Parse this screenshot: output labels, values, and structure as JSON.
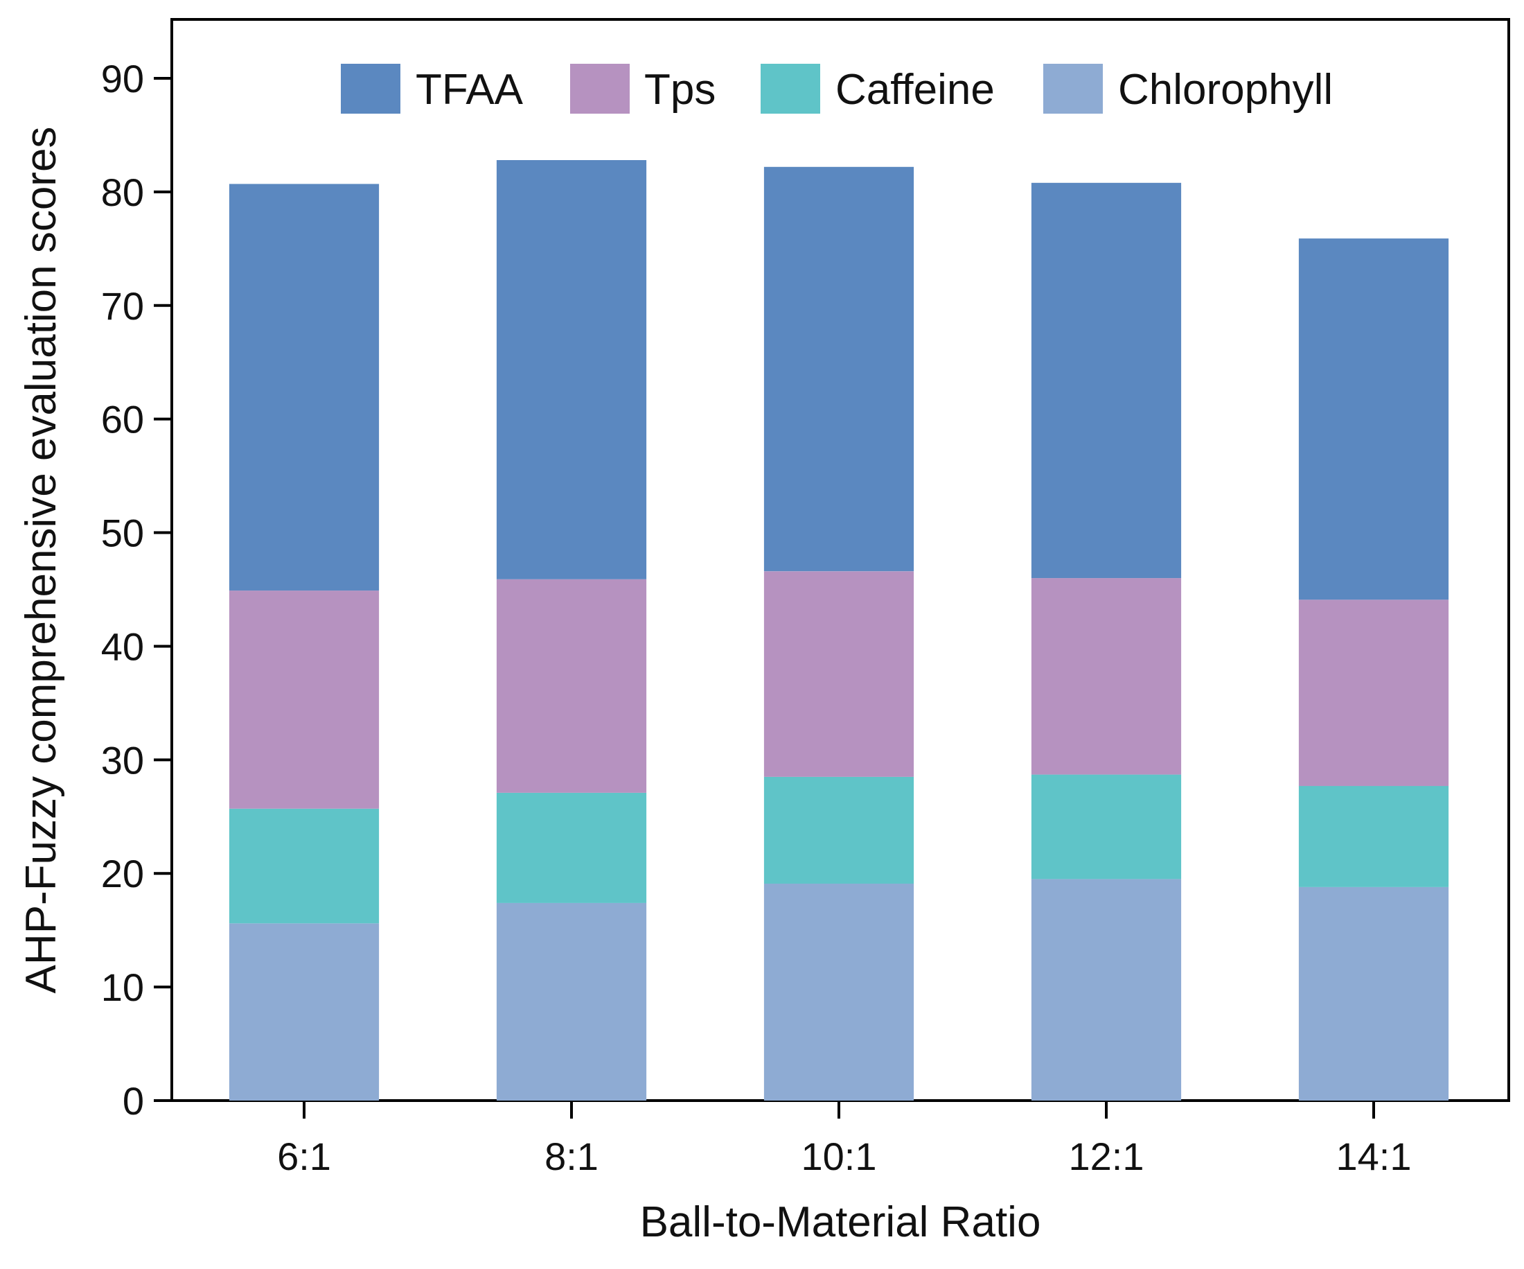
{
  "chart_data": {
    "type": "bar",
    "stacked": true,
    "title": "",
    "xlabel": "Ball-to-Material Ratio",
    "ylabel": "AHP-Fuzzy comprehensive evaluation scores",
    "ylim": [
      0,
      95
    ],
    "yticks": [
      0,
      10,
      20,
      30,
      40,
      50,
      60,
      70,
      80,
      90
    ],
    "ytick_labels": [
      "0",
      "10",
      "20",
      "30",
      "40",
      "50",
      "60",
      "70",
      "80",
      "90"
    ],
    "categories": [
      "6:1",
      "8:1",
      "10:1",
      "12:1",
      "14:1"
    ],
    "grid": false,
    "legend_position": "top",
    "series": [
      {
        "name": "Chlorophyll",
        "color": "#8eabd3",
        "values": [
          15.6,
          17.4,
          19.1,
          19.5,
          18.8
        ]
      },
      {
        "name": "Caffeine",
        "color": "#5fc4c8",
        "values": [
          10.1,
          9.7,
          9.4,
          9.2,
          8.9
        ]
      },
      {
        "name": "Tps",
        "color": "#b692c0",
        "values": [
          19.2,
          18.8,
          18.1,
          17.3,
          16.4
        ]
      },
      {
        "name": "TFAA",
        "color": "#5b88c0",
        "values": [
          35.8,
          36.9,
          35.6,
          34.8,
          31.8
        ]
      }
    ],
    "legend_order": [
      "TFAA",
      "Tps",
      "Caffeine",
      "Chlorophyll"
    ]
  }
}
